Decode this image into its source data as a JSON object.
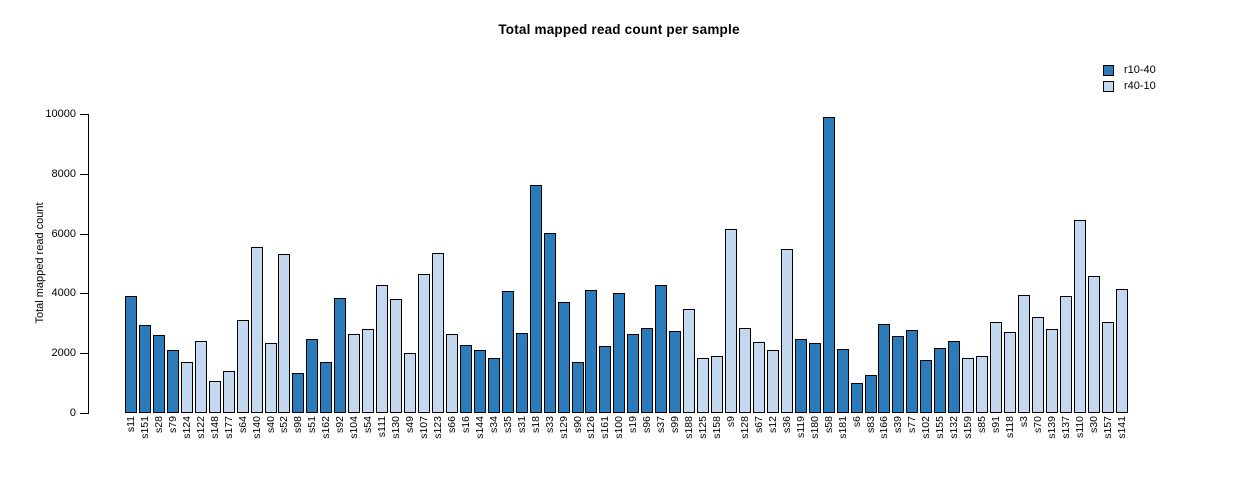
{
  "chart_data": {
    "type": "bar",
    "title": "Total mapped read count per sample",
    "ylabel": "Total mapped read count",
    "xlabel": "",
    "ylim": [
      0,
      10000
    ],
    "yticks": [
      0,
      2000,
      4000,
      6000,
      8000,
      10000
    ],
    "grid": false,
    "legend_position": "top-right",
    "series": [
      {
        "name": "r10-40",
        "color": "#2b7bba"
      },
      {
        "name": "r40-10",
        "color": "#c3d7ee"
      }
    ],
    "samples": [
      {
        "id": "s11",
        "value": 3900,
        "series": "r10-40"
      },
      {
        "id": "s151",
        "value": 2950,
        "series": "r10-40"
      },
      {
        "id": "s28",
        "value": 2600,
        "series": "r10-40"
      },
      {
        "id": "s79",
        "value": 2100,
        "series": "r10-40"
      },
      {
        "id": "s124",
        "value": 1720,
        "series": "r40-10"
      },
      {
        "id": "s122",
        "value": 2400,
        "series": "r40-10"
      },
      {
        "id": "s148",
        "value": 1080,
        "series": "r40-10"
      },
      {
        "id": "s177",
        "value": 1400,
        "series": "r40-10"
      },
      {
        "id": "s64",
        "value": 3120,
        "series": "r40-10"
      },
      {
        "id": "s140",
        "value": 5560,
        "series": "r40-10"
      },
      {
        "id": "s40",
        "value": 2330,
        "series": "r40-10"
      },
      {
        "id": "s52",
        "value": 5320,
        "series": "r40-10"
      },
      {
        "id": "s98",
        "value": 1350,
        "series": "r10-40"
      },
      {
        "id": "s51",
        "value": 2460,
        "series": "r10-40"
      },
      {
        "id": "s162",
        "value": 1700,
        "series": "r10-40"
      },
      {
        "id": "s92",
        "value": 3850,
        "series": "r10-40"
      },
      {
        "id": "s104",
        "value": 2640,
        "series": "r40-10"
      },
      {
        "id": "s54",
        "value": 2820,
        "series": "r40-10"
      },
      {
        "id": "s111",
        "value": 4280,
        "series": "r40-10"
      },
      {
        "id": "s130",
        "value": 3800,
        "series": "r40-10"
      },
      {
        "id": "s49",
        "value": 2000,
        "series": "r40-10"
      },
      {
        "id": "s107",
        "value": 4660,
        "series": "r40-10"
      },
      {
        "id": "s123",
        "value": 5360,
        "series": "r40-10"
      },
      {
        "id": "s66",
        "value": 2630,
        "series": "r40-10"
      },
      {
        "id": "s16",
        "value": 2270,
        "series": "r10-40"
      },
      {
        "id": "s144",
        "value": 2110,
        "series": "r10-40"
      },
      {
        "id": "s34",
        "value": 1850,
        "series": "r10-40"
      },
      {
        "id": "s35",
        "value": 4080,
        "series": "r10-40"
      },
      {
        "id": "s31",
        "value": 2660,
        "series": "r10-40"
      },
      {
        "id": "s18",
        "value": 7640,
        "series": "r10-40"
      },
      {
        "id": "s33",
        "value": 6010,
        "series": "r10-40"
      },
      {
        "id": "s129",
        "value": 3700,
        "series": "r10-40"
      },
      {
        "id": "s90",
        "value": 1700,
        "series": "r10-40"
      },
      {
        "id": "s126",
        "value": 4110,
        "series": "r10-40"
      },
      {
        "id": "s161",
        "value": 2240,
        "series": "r10-40"
      },
      {
        "id": "s100",
        "value": 4000,
        "series": "r10-40"
      },
      {
        "id": "s19",
        "value": 2630,
        "series": "r10-40"
      },
      {
        "id": "s96",
        "value": 2850,
        "series": "r10-40"
      },
      {
        "id": "s37",
        "value": 4280,
        "series": "r10-40"
      },
      {
        "id": "s99",
        "value": 2740,
        "series": "r10-40"
      },
      {
        "id": "s188",
        "value": 3470,
        "series": "r40-10"
      },
      {
        "id": "s125",
        "value": 1850,
        "series": "r40-10"
      },
      {
        "id": "s158",
        "value": 1920,
        "series": "r40-10"
      },
      {
        "id": "s9",
        "value": 6150,
        "series": "r40-10"
      },
      {
        "id": "s128",
        "value": 2850,
        "series": "r40-10"
      },
      {
        "id": "s67",
        "value": 2360,
        "series": "r40-10"
      },
      {
        "id": "s12",
        "value": 2110,
        "series": "r40-10"
      },
      {
        "id": "s36",
        "value": 5470,
        "series": "r40-10"
      },
      {
        "id": "s119",
        "value": 2480,
        "series": "r10-40"
      },
      {
        "id": "s180",
        "value": 2330,
        "series": "r10-40"
      },
      {
        "id": "s58",
        "value": 9900,
        "series": "r10-40"
      },
      {
        "id": "s181",
        "value": 2140,
        "series": "r10-40"
      },
      {
        "id": "s6",
        "value": 990,
        "series": "r10-40"
      },
      {
        "id": "s83",
        "value": 1270,
        "series": "r10-40"
      },
      {
        "id": "s166",
        "value": 2970,
        "series": "r10-40"
      },
      {
        "id": "s39",
        "value": 2590,
        "series": "r10-40"
      },
      {
        "id": "s77",
        "value": 2780,
        "series": "r10-40"
      },
      {
        "id": "s102",
        "value": 1770,
        "series": "r10-40"
      },
      {
        "id": "s155",
        "value": 2180,
        "series": "r10-40"
      },
      {
        "id": "s132",
        "value": 2410,
        "series": "r10-40"
      },
      {
        "id": "s159",
        "value": 1830,
        "series": "r40-10"
      },
      {
        "id": "s85",
        "value": 1920,
        "series": "r40-10"
      },
      {
        "id": "s91",
        "value": 3030,
        "series": "r40-10"
      },
      {
        "id": "s118",
        "value": 2700,
        "series": "r40-10"
      },
      {
        "id": "s3",
        "value": 3940,
        "series": "r40-10"
      },
      {
        "id": "s70",
        "value": 3220,
        "series": "r40-10"
      },
      {
        "id": "s139",
        "value": 2810,
        "series": "r40-10"
      },
      {
        "id": "s137",
        "value": 3900,
        "series": "r40-10"
      },
      {
        "id": "s110",
        "value": 6460,
        "series": "r40-10"
      },
      {
        "id": "s30",
        "value": 4580,
        "series": "r40-10"
      },
      {
        "id": "s157",
        "value": 3030,
        "series": "r40-10"
      },
      {
        "id": "s141",
        "value": 4140,
        "series": "r40-10"
      }
    ]
  }
}
